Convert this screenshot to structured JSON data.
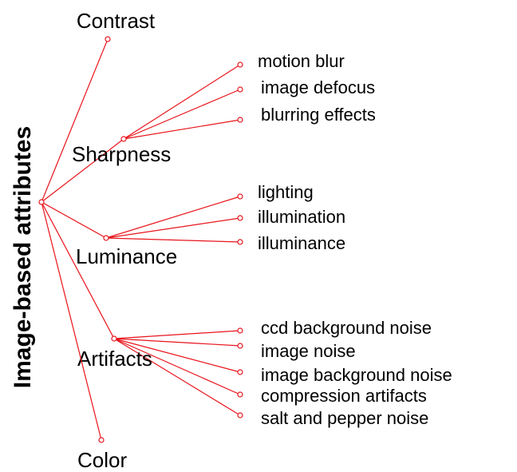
{
  "root": {
    "label": "Image-based attributes"
  },
  "branches": [
    {
      "label": "Contrast",
      "children": []
    },
    {
      "label": "Sharpness",
      "children": [
        "motion blur",
        "image defocus",
        "blurring effects"
      ]
    },
    {
      "label": "Luminance",
      "children": [
        "lighting",
        "illumination",
        "illuminance"
      ]
    },
    {
      "label": "Artifacts",
      "children": [
        "ccd background noise",
        "image noise",
        "image background noise",
        "compression artifacts",
        "salt and pepper noise"
      ]
    },
    {
      "label": "Color",
      "children": []
    }
  ]
}
